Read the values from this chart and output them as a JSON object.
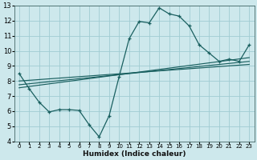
{
  "xlabel": "Humidex (Indice chaleur)",
  "bg_color": "#cde8ec",
  "grid_color": "#a0ccd2",
  "line_color": "#1a6060",
  "xlim": [
    -0.5,
    23.5
  ],
  "ylim": [
    4,
    13
  ],
  "xticks": [
    0,
    1,
    2,
    3,
    4,
    5,
    6,
    7,
    8,
    9,
    10,
    11,
    12,
    13,
    14,
    15,
    16,
    17,
    18,
    19,
    20,
    21,
    22,
    23
  ],
  "yticks": [
    4,
    5,
    6,
    7,
    8,
    9,
    10,
    11,
    12,
    13
  ],
  "curve1_x": [
    0,
    1,
    2,
    3,
    4,
    5,
    6,
    7,
    8,
    9,
    10,
    11,
    12,
    13,
    14,
    15,
    16,
    17,
    18,
    19,
    20,
    21,
    22,
    23
  ],
  "curve1_y": [
    8.5,
    7.5,
    6.6,
    5.95,
    6.1,
    6.1,
    6.05,
    5.1,
    4.3,
    5.7,
    8.3,
    10.8,
    11.95,
    11.85,
    12.85,
    12.45,
    12.3,
    11.65,
    10.4,
    9.85,
    9.3,
    9.45,
    9.3,
    10.4
  ],
  "line1_x": [
    0,
    23
  ],
  "line1_y": [
    7.55,
    9.55
  ],
  "line2_x": [
    0,
    23
  ],
  "line2_y": [
    7.75,
    9.3
  ],
  "line3_x": [
    0,
    23
  ],
  "line3_y": [
    8.0,
    9.1
  ]
}
